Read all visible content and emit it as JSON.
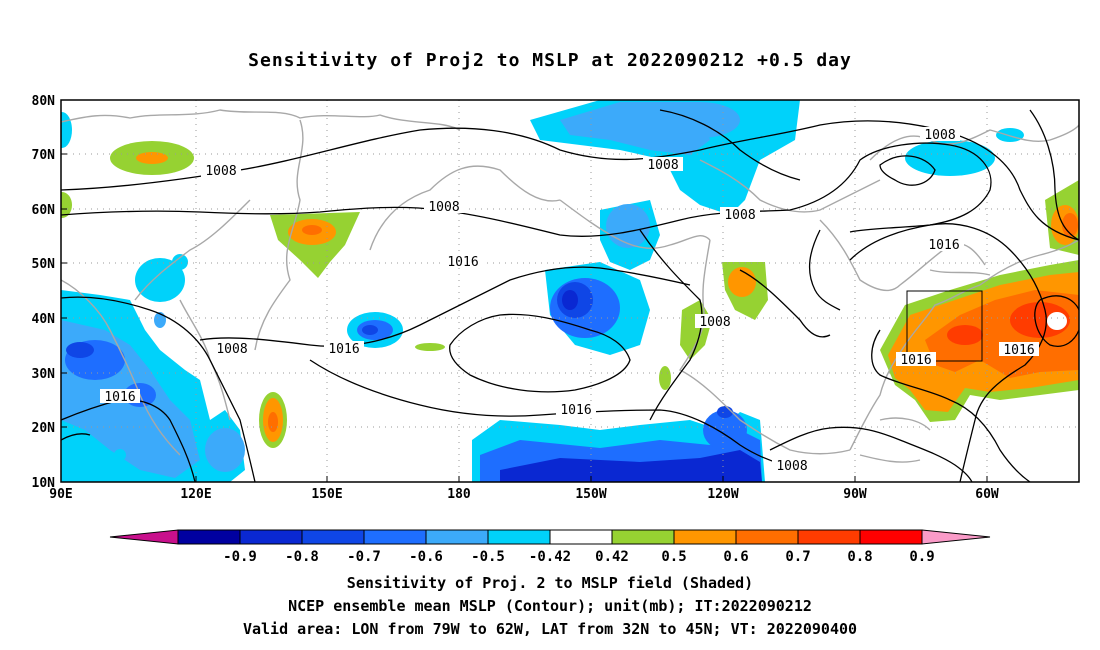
{
  "title": "Sensitivity of Proj2 to MSLP at 2022090212 +0.5 day",
  "lat_labels": [
    "80N",
    "70N",
    "60N",
    "50N",
    "40N",
    "30N",
    "20N",
    "10N"
  ],
  "lon_labels": [
    "90E",
    "120E",
    "150E",
    "180",
    "150W",
    "120W",
    "90W",
    "60W"
  ],
  "contour_labels": [
    "1008",
    "1008",
    "1008",
    "1008",
    "1008",
    "1008",
    "1008",
    "1008",
    "1016",
    "1016",
    "1016",
    "1016",
    "1016",
    "1016"
  ],
  "colorbar": {
    "labels": [
      "-0.9",
      "-0.8",
      "-0.7",
      "-0.6",
      "-0.5",
      "-0.42",
      "0.42",
      "0.5",
      "0.6",
      "0.7",
      "0.8",
      "0.9"
    ],
    "colors": [
      "#c8108c",
      "#0000a0",
      "#0a28d2",
      "#0f46e6",
      "#1e6eff",
      "#3caafa",
      "#00d2fa",
      "#ffffff",
      "#96d232",
      "#ff9600",
      "#ff6e00",
      "#ff3c00",
      "#ff0000",
      "#fa9bc8"
    ]
  },
  "captions": {
    "line1": "Sensitivity of Proj. 2 to MSLP field (Shaded)",
    "line2": "NCEP ensemble mean MSLP (Contour); unit(mb); IT:2022090212",
    "line3": "Valid area: LON from 79W to 62W, LAT from 32N to 45N; VT: 2022090400"
  }
}
